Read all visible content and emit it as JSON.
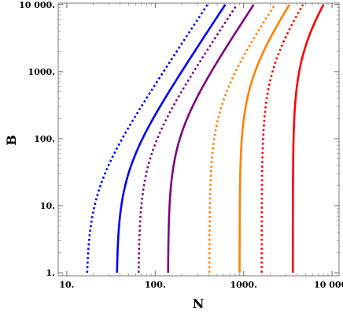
{
  "chart_data": {
    "type": "line",
    "title": "",
    "xlabel": "N",
    "ylabel": "B",
    "x_scale": "log",
    "y_scale": "log",
    "xlim": [
      8,
      12000
    ],
    "ylim": [
      0.9,
      10500
    ],
    "x_ticks": [
      {
        "value": 10,
        "label": "10."
      },
      {
        "value": 100,
        "label": "100."
      },
      {
        "value": 1000,
        "label": "1000."
      },
      {
        "value": 10000,
        "label": "10 000."
      }
    ],
    "y_ticks": [
      {
        "value": 1,
        "label": "1."
      },
      {
        "value": 10,
        "label": "10."
      },
      {
        "value": 100,
        "label": "100."
      },
      {
        "value": 1000,
        "label": "1000."
      },
      {
        "value": 10000,
        "label": "10 000."
      }
    ],
    "grid": false,
    "legend": "none",
    "series": [
      {
        "color": "#0000ff",
        "style": "dotted",
        "N0": 17,
        "N_at_10000": 390
      },
      {
        "color": "#0000ff",
        "style": "solid",
        "N0": 37,
        "N_at_10000": 620
      },
      {
        "color": "#800080",
        "style": "dotted",
        "N0": 65,
        "N_at_10000": 840
      },
      {
        "color": "#800080",
        "style": "solid",
        "N0": 140,
        "N_at_10000": 1300
      },
      {
        "color": "#ff8000",
        "style": "dotted",
        "N0": 410,
        "N_at_10000": 2250
      },
      {
        "color": "#ff8000",
        "style": "solid",
        "N0": 900,
        "N_at_10000": 3300
      },
      {
        "color": "#ff0000",
        "style": "dotted",
        "N0": 1600,
        "N_at_10000": 4700
      },
      {
        "color": "#ff0000",
        "style": "solid",
        "N0": 3600,
        "N_at_10000": 8000
      }
    ]
  }
}
